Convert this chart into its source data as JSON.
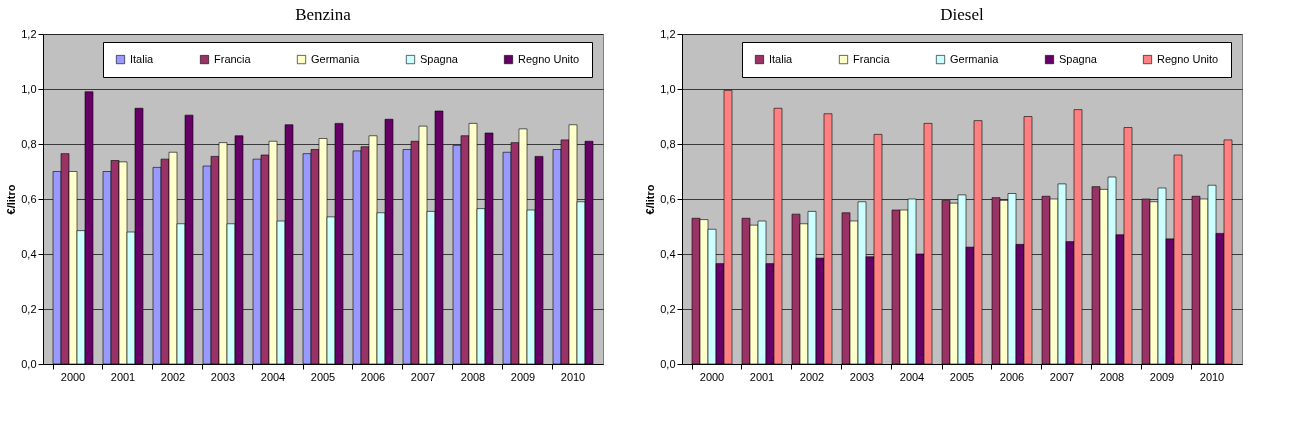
{
  "chart_data": [
    {
      "type": "bar",
      "title": "Benzina",
      "ylabel": "€/litro",
      "categories": [
        "2000",
        "2001",
        "2002",
        "2003",
        "2004",
        "2005",
        "2006",
        "2007",
        "2008",
        "2009",
        "2010"
      ],
      "series": [
        {
          "name": "Italia",
          "color": "#9999ff",
          "values": [
            0.7,
            0.7,
            0.715,
            0.72,
            0.745,
            0.765,
            0.775,
            0.78,
            0.795,
            0.77,
            0.78
          ]
        },
        {
          "name": "Francia",
          "color": "#993366",
          "values": [
            0.765,
            0.74,
            0.745,
            0.755,
            0.76,
            0.78,
            0.79,
            0.81,
            0.83,
            0.805,
            0.815
          ]
        },
        {
          "name": "Germania",
          "color": "#ffffcc",
          "values": [
            0.7,
            0.735,
            0.77,
            0.805,
            0.81,
            0.82,
            0.83,
            0.865,
            0.875,
            0.855,
            0.87
          ]
        },
        {
          "name": "Spagna",
          "color": "#ccffff",
          "values": [
            0.485,
            0.48,
            0.51,
            0.51,
            0.52,
            0.535,
            0.55,
            0.555,
            0.565,
            0.56,
            0.59
          ]
        },
        {
          "name": "Regno Unito",
          "color": "#660066",
          "values": [
            0.99,
            0.93,
            0.905,
            0.83,
            0.87,
            0.875,
            0.89,
            0.92,
            0.84,
            0.755,
            0.81
          ]
        }
      ],
      "ylim": [
        0,
        1.2
      ],
      "yticks": [
        {
          "value": 0,
          "label": "0,0"
        },
        {
          "value": 0.2,
          "label": "0,2"
        },
        {
          "value": 0.4,
          "label": "0,4"
        },
        {
          "value": 0.6,
          "label": "0,6"
        },
        {
          "value": 0.8,
          "label": "0,8"
        },
        {
          "value": 1.0,
          "label": "1,0"
        },
        {
          "value": 1.2,
          "label": "1,2"
        }
      ],
      "grid": "y",
      "legend": "top"
    },
    {
      "type": "bar",
      "title": "Diesel",
      "ylabel": "€/litro",
      "categories": [
        "2000",
        "2001",
        "2002",
        "2003",
        "2004",
        "2005",
        "2006",
        "2007",
        "2008",
        "2009",
        "2010"
      ],
      "series": [
        {
          "name": "Italia",
          "color": "#993366",
          "values": [
            0.53,
            0.53,
            0.545,
            0.55,
            0.56,
            0.595,
            0.605,
            0.61,
            0.645,
            0.6,
            0.61
          ]
        },
        {
          "name": "Francia",
          "color": "#ffffcc",
          "values": [
            0.525,
            0.505,
            0.51,
            0.52,
            0.56,
            0.585,
            0.595,
            0.6,
            0.635,
            0.59,
            0.6
          ]
        },
        {
          "name": "Germania",
          "color": "#ccffff",
          "values": [
            0.49,
            0.52,
            0.555,
            0.59,
            0.6,
            0.615,
            0.62,
            0.655,
            0.68,
            0.64,
            0.65
          ]
        },
        {
          "name": "Spagna",
          "color": "#660066",
          "values": [
            0.365,
            0.365,
            0.385,
            0.39,
            0.4,
            0.425,
            0.435,
            0.445,
            0.47,
            0.455,
            0.475
          ]
        },
        {
          "name": "Regno Unito",
          "color": "#ff8080",
          "values": [
            0.995,
            0.93,
            0.91,
            0.835,
            0.875,
            0.885,
            0.9,
            0.925,
            0.86,
            0.76,
            0.815
          ]
        }
      ],
      "ylim": [
        0,
        1.2
      ],
      "yticks": [
        {
          "value": 0,
          "label": "0,0"
        },
        {
          "value": 0.2,
          "label": "0,2"
        },
        {
          "value": 0.4,
          "label": "0,4"
        },
        {
          "value": 0.6,
          "label": "0,6"
        },
        {
          "value": 0.8,
          "label": "0,8"
        },
        {
          "value": 1.0,
          "label": "1,0"
        },
        {
          "value": 1.2,
          "label": "1,2"
        }
      ],
      "grid": "y",
      "legend": "top"
    }
  ]
}
